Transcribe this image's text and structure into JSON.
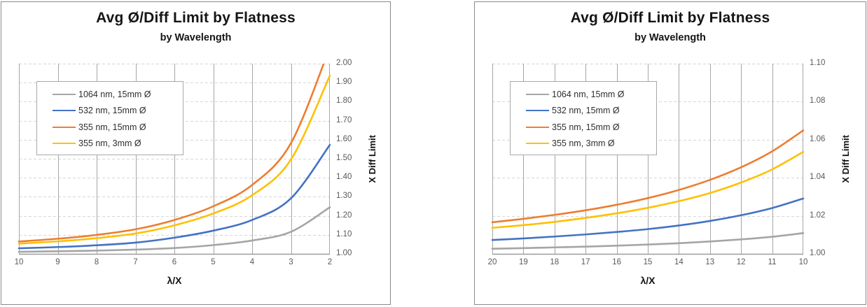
{
  "styles": {
    "card_border": "#8A8A8A",
    "grid_vertical_color": "#A6A6A6",
    "grid_horizontal_color": "#D6D6D6",
    "axis_line_color": "#9C9C9C",
    "tick_label_color": "#595959",
    "legend_border_color": "#A9A9A9"
  },
  "chart_data": [
    {
      "type": "line",
      "title": "Avg Ø/Diff Limit by Flatness",
      "subtitle": "by Wavelength",
      "xlabel": "λ/X",
      "ylabel": "X Diff Limit",
      "x_axis_reversed": true,
      "grid": {
        "vertical_style": "solid",
        "horizontal_style": "dashed"
      },
      "legend_position": "inside-top-left",
      "x": [
        10,
        9,
        8,
        7,
        6,
        5,
        4,
        3,
        2
      ],
      "ylim": [
        1.0,
        2.0
      ],
      "y_ticks": [
        1.0,
        1.1,
        1.2,
        1.3,
        1.4,
        1.5,
        1.6,
        1.7,
        1.8,
        1.9,
        2.0
      ],
      "series": [
        {
          "name": "1064 nm, 15mm Ø",
          "color": "#A5A5A5",
          "values": [
            1.0109,
            1.0135,
            1.017,
            1.0222,
            1.0305,
            1.046,
            1.07,
            1.116,
            1.245
          ]
        },
        {
          "name": "532 nm, 15mm Ø",
          "color": "#4472C4",
          "values": [
            1.0291,
            1.0358,
            1.0451,
            1.059,
            1.085,
            1.122,
            1.178,
            1.292,
            1.573
          ]
        },
        {
          "name": "355 nm, 15mm Ø",
          "color": "#ED7D31",
          "values": [
            1.0649,
            1.0795,
            1.0997,
            1.129,
            1.178,
            1.25,
            1.362,
            1.582,
            2.086
          ]
        },
        {
          "name": "355 nm, 3mm Ø",
          "color": "#FFC000",
          "values": [
            1.0536,
            1.0657,
            1.0825,
            1.107,
            1.15,
            1.212,
            1.308,
            1.496,
            1.937
          ]
        }
      ]
    },
    {
      "type": "line",
      "title": "Avg Ø/Diff Limit by Flatness",
      "subtitle": "by Wavelength",
      "xlabel": "λ/X",
      "ylabel": "X Diff Limit",
      "x_axis_reversed": true,
      "grid": {
        "vertical_style": "solid",
        "horizontal_style": "dashed"
      },
      "legend_position": "inside-top-left",
      "x": [
        20,
        19,
        18,
        17,
        16,
        15,
        14,
        13,
        12,
        11,
        10
      ],
      "ylim": [
        1.0,
        1.1
      ],
      "y_ticks": [
        1.0,
        1.02,
        1.04,
        1.06,
        1.08,
        1.1
      ],
      "series": [
        {
          "name": "1064 nm, 15mm Ø",
          "color": "#A5A5A5",
          "values": [
            1.0027,
            1.003,
            1.0034,
            1.0038,
            1.0043,
            1.0049,
            1.0056,
            1.0065,
            1.0076,
            1.009,
            1.0109
          ]
        },
        {
          "name": "532 nm, 15mm Ø",
          "color": "#4472C4",
          "values": [
            1.0073,
            1.0081,
            1.0091,
            1.0102,
            1.0115,
            1.013,
            1.0149,
            1.0173,
            1.0203,
            1.0241,
            1.0291
          ]
        },
        {
          "name": "355 nm, 15mm Ø",
          "color": "#ED7D31",
          "values": [
            1.0166,
            1.0184,
            1.0205,
            1.0229,
            1.0258,
            1.0293,
            1.0336,
            1.0389,
            1.0455,
            1.0539,
            1.0649
          ]
        },
        {
          "name": "355 nm, 3mm Ø",
          "color": "#FFC000",
          "values": [
            1.0137,
            1.0151,
            1.0168,
            1.0189,
            1.0213,
            1.0242,
            1.0277,
            1.032,
            1.0375,
            1.0444,
            1.0536
          ]
        }
      ]
    }
  ]
}
